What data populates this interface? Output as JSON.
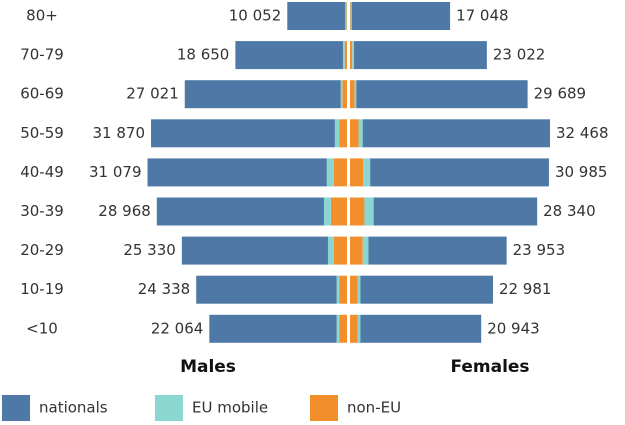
{
  "chart_data": {
    "type": "pyramid",
    "categories": [
      "80+",
      "70-79",
      "60-69",
      "50-59",
      "40-49",
      "30-39",
      "20-29",
      "10-19",
      "<10"
    ],
    "groups": [
      "Males",
      "Females"
    ],
    "series": [
      {
        "name": "nationals",
        "color": "#4e79a7",
        "values": [
          [
            10052,
            18650,
            27021,
            31870,
            31079,
            28968,
            25330,
            24338,
            22064
          ],
          [
            17048,
            23022,
            29689,
            32468,
            30985,
            28340,
            23953,
            22981,
            20943
          ]
        ],
        "value_labels": [
          [
            "10 052",
            "18 650",
            "27 021",
            "31 870",
            "31 079",
            "28 968",
            "25 330",
            "24 338",
            "22 064"
          ],
          [
            "17 048",
            "23 022",
            "29 689",
            "32 468",
            "30 985",
            "28 340",
            "23 953",
            "22 981",
            "20 943"
          ]
        ]
      },
      {
        "name": "EU mobile",
        "color": "#8ad6d1",
        "values": [
          [
            200,
            300,
            300,
            800,
            1200,
            1200,
            1000,
            500,
            500
          ],
          [
            200,
            300,
            300,
            700,
            1200,
            1600,
            1000,
            500,
            500
          ]
        ]
      },
      {
        "name": "non-EU",
        "color": "#f28e2b",
        "values": [
          [
            100,
            400,
            800,
            1300,
            2300,
            2800,
            2300,
            1300,
            1300
          ],
          [
            100,
            400,
            800,
            1500,
            2300,
            2500,
            2200,
            1300,
            1300
          ]
        ]
      }
    ]
  }
}
